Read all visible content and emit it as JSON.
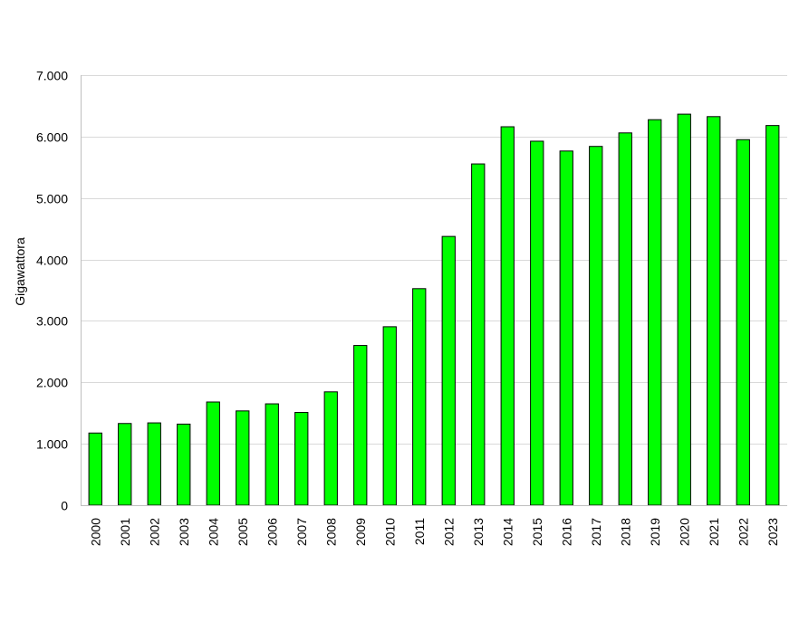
{
  "chart_data": {
    "type": "bar",
    "title": "",
    "xlabel": "",
    "ylabel": "Gigawattora",
    "ylim": [
      0,
      7000
    ],
    "grid": true,
    "legend": "none",
    "bar_color": "#00ff00",
    "bar_edge_color": "#000000",
    "grid_color": "#d9d9d9",
    "y_ticks": [
      {
        "value": 0,
        "label": "0"
      },
      {
        "value": 1000,
        "label": "1.000"
      },
      {
        "value": 2000,
        "label": "2.000"
      },
      {
        "value": 3000,
        "label": "3.000"
      },
      {
        "value": 4000,
        "label": "4.000"
      },
      {
        "value": 5000,
        "label": "5.000"
      },
      {
        "value": 6000,
        "label": "6.000"
      },
      {
        "value": 7000,
        "label": "7.000"
      }
    ],
    "categories": [
      "2000",
      "2001",
      "2002",
      "2003",
      "2004",
      "2005",
      "2006",
      "2007",
      "2008",
      "2009",
      "2010",
      "2011",
      "2012",
      "2013",
      "2014",
      "2015",
      "2016",
      "2017",
      "2018",
      "2019",
      "2020",
      "2021",
      "2022",
      "2023"
    ],
    "values": [
      1175,
      1330,
      1340,
      1320,
      1680,
      1535,
      1650,
      1510,
      1845,
      2600,
      2905,
      3525,
      4375,
      5555,
      6160,
      5925,
      5765,
      5840,
      6060,
      6275,
      6365,
      6325,
      5950,
      6180
    ]
  }
}
